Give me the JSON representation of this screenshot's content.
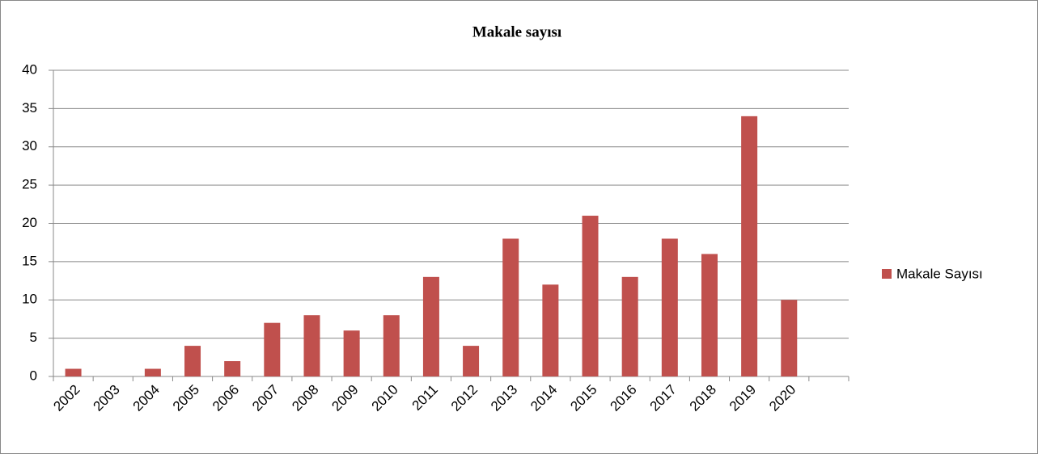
{
  "chart_data": {
    "type": "bar",
    "title": "Makale sayısı",
    "categories": [
      "2002",
      "2003",
      "2004",
      "2005",
      "2006",
      "2007",
      "2008",
      "2009",
      "2010",
      "2011",
      "2012",
      "2013",
      "2014",
      "2015",
      "2016",
      "2017",
      "2018",
      "2019",
      "2020",
      null
    ],
    "series": [
      {
        "name": "Makale Sayısı",
        "color": "#c0504d",
        "values": [
          1,
          0,
          1,
          4,
          2,
          7,
          8,
          6,
          8,
          13,
          4,
          18,
          12,
          21,
          13,
          18,
          16,
          34,
          10,
          null
        ]
      }
    ],
    "ylim": [
      0,
      40
    ],
    "yticks": [
      0,
      5,
      10,
      15,
      20,
      25,
      30,
      35,
      40
    ],
    "grid": true,
    "legend": "right"
  }
}
